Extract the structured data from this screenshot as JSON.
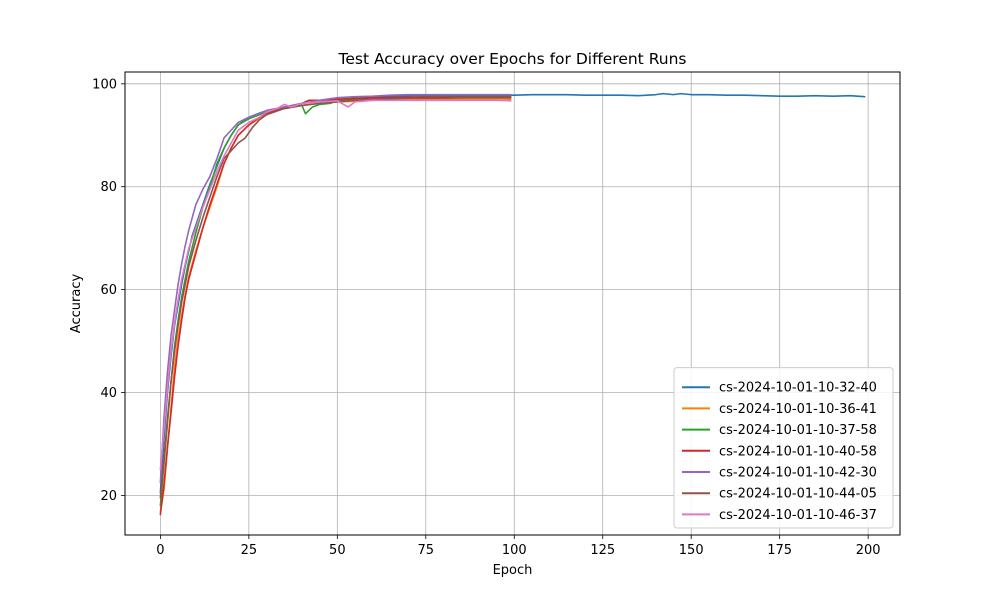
{
  "chart_data": {
    "type": "line",
    "title": "Test Accuracy over Epochs for Different Runs",
    "xlabel": "Epoch",
    "ylabel": "Accuracy",
    "xlim": [
      -10,
      209
    ],
    "ylim": [
      12.3,
      102.3
    ],
    "xticks": [
      0,
      25,
      50,
      75,
      100,
      125,
      150,
      175,
      200
    ],
    "yticks": [
      20,
      40,
      60,
      80,
      100
    ],
    "grid": true,
    "legend_position": "lower right",
    "series": [
      {
        "name": "cs-2024-10-01-10-32-40",
        "color": "#1f77b4",
        "x": [
          0,
          1,
          2,
          3,
          4,
          5,
          6,
          7,
          8,
          9,
          10,
          12,
          14,
          16,
          18,
          20,
          22,
          25,
          28,
          30,
          35,
          40,
          45,
          50,
          55,
          60,
          65,
          70,
          75,
          80,
          85,
          90,
          95,
          100,
          105,
          110,
          115,
          120,
          125,
          130,
          135,
          140,
          142,
          145,
          147,
          150,
          155,
          160,
          165,
          170,
          175,
          180,
          185,
          190,
          195,
          199
        ],
        "y": [
          20.5,
          31,
          40,
          47,
          53,
          57,
          61,
          64.5,
          67.5,
          70.5,
          72.5,
          76.5,
          80.5,
          84,
          87.5,
          90,
          92,
          93.5,
          94.3,
          94.8,
          95.5,
          96.2,
          96.6,
          97,
          97.2,
          97.4,
          97.6,
          97.7,
          97.8,
          97.8,
          97.8,
          97.8,
          97.8,
          97.8,
          97.9,
          97.9,
          97.9,
          97.8,
          97.8,
          97.8,
          97.7,
          97.9,
          98.1,
          97.9,
          98.1,
          97.9,
          97.9,
          97.8,
          97.8,
          97.7,
          97.6,
          97.6,
          97.7,
          97.6,
          97.7,
          97.5
        ]
      },
      {
        "name": "cs-2024-10-01-10-36-41",
        "color": "#ff7f0e",
        "x": [
          0,
          1,
          2,
          3,
          4,
          5,
          6,
          7,
          8,
          10,
          12,
          14,
          16,
          18,
          20,
          22,
          25,
          28,
          30,
          35,
          40,
          45,
          50,
          55,
          60,
          65,
          70,
          75,
          80,
          85,
          90,
          95,
          99
        ],
        "y": [
          16.8,
          21,
          29,
          37,
          45,
          50.5,
          55,
          59,
          62.5,
          67.5,
          72,
          76,
          80,
          84.5,
          87.5,
          90,
          92,
          93.3,
          94.2,
          95.2,
          95.8,
          96.2,
          96.5,
          96.6,
          96.8,
          96.9,
          97,
          97,
          97,
          97,
          97.1,
          97.1,
          97
        ]
      },
      {
        "name": "cs-2024-10-01-10-37-58",
        "color": "#2ca02c",
        "x": [
          0,
          1,
          2,
          3,
          4,
          5,
          6,
          7,
          8,
          10,
          12,
          14,
          16,
          18,
          20,
          22,
          25,
          28,
          30,
          35,
          40,
          41,
          43,
          45,
          48,
          50,
          55,
          60,
          65,
          70,
          75,
          80,
          85,
          90,
          95,
          99
        ],
        "y": [
          18,
          26,
          34,
          42,
          49,
          54,
          58.5,
          62,
          65.5,
          71,
          76,
          80,
          84.5,
          87.5,
          90,
          92,
          93.2,
          94,
          94.6,
          95.2,
          95.8,
          94.2,
          95.5,
          96,
          96.2,
          96.7,
          97,
          97.2,
          97.3,
          97.4,
          97.5,
          97.5,
          97.5,
          97.5,
          97.5,
          97.5
        ]
      },
      {
        "name": "cs-2024-10-01-10-40-58",
        "color": "#d62728",
        "x": [
          0,
          1,
          2,
          3,
          4,
          5,
          6,
          7,
          8,
          10,
          12,
          14,
          16,
          18,
          20,
          22,
          25,
          28,
          30,
          35,
          40,
          42,
          45,
          50,
          55,
          60,
          65,
          70,
          75,
          80,
          85,
          90,
          95,
          99
        ],
        "y": [
          16.3,
          22,
          29.5,
          36,
          43,
          49,
          54,
          58.5,
          62,
          67,
          72,
          76.5,
          80.5,
          84.5,
          87.5,
          90,
          92,
          93.5,
          94.3,
          95.3,
          96.2,
          96.8,
          96.8,
          97,
          97.2,
          97.3,
          97.3,
          97.4,
          97.4,
          97.4,
          97.4,
          97.4,
          97.4,
          97.4
        ]
      },
      {
        "name": "cs-2024-10-01-10-42-30",
        "color": "#9467bd",
        "x": [
          0,
          1,
          2,
          3,
          4,
          5,
          6,
          7,
          8,
          9,
          10,
          12,
          14,
          16,
          18,
          20,
          22,
          25,
          28,
          30,
          35,
          40,
          45,
          50,
          55,
          60,
          65,
          70,
          75,
          80,
          85,
          90,
          95,
          99
        ],
        "y": [
          22.5,
          35,
          44,
          51,
          56,
          61,
          65,
          68.5,
          71.5,
          74,
          76.5,
          79.5,
          82,
          85.5,
          89.5,
          91,
          92.5,
          93.5,
          94.2,
          94.8,
          95.5,
          96.2,
          96.8,
          97.3,
          97.5,
          97.6,
          97.8,
          97.9,
          97.9,
          97.9,
          97.9,
          97.9,
          97.9,
          97.9
        ]
      },
      {
        "name": "cs-2024-10-01-10-44-05",
        "color": "#8c564b",
        "x": [
          0,
          1,
          2,
          3,
          4,
          5,
          6,
          7,
          8,
          10,
          12,
          14,
          16,
          18,
          20,
          22,
          24,
          26,
          28,
          30,
          35,
          40,
          45,
          50,
          55,
          60,
          65,
          70,
          75,
          80,
          85,
          90,
          95,
          99
        ],
        "y": [
          19.5,
          27,
          35,
          42,
          48,
          53,
          57.5,
          61,
          64.5,
          69.5,
          74,
          78,
          82,
          85.5,
          87,
          88.5,
          89.5,
          91.5,
          93,
          94,
          95.2,
          95.8,
          96.2,
          96.5,
          96.8,
          97,
          97.1,
          97.2,
          97.2,
          97.2,
          97.3,
          97.3,
          97.3,
          97.3
        ]
      },
      {
        "name": "cs-2024-10-01-10-46-37",
        "color": "#e377c2",
        "x": [
          0,
          1,
          2,
          3,
          4,
          5,
          6,
          7,
          8,
          10,
          12,
          14,
          16,
          18,
          20,
          22,
          25,
          28,
          30,
          33,
          35,
          37,
          40,
          45,
          50,
          53,
          55,
          60,
          65,
          70,
          75,
          80,
          85,
          90,
          95,
          99
        ],
        "y": [
          25,
          33,
          41,
          48,
          53.5,
          58,
          62,
          65,
          68,
          72,
          76,
          79.5,
          83,
          86,
          88.5,
          91,
          92.5,
          93.5,
          94.5,
          95.2,
          96,
          95.5,
          96.2,
          96.5,
          96.7,
          95.5,
          96.5,
          96.8,
          96.8,
          96.8,
          96.8,
          96.8,
          96.8,
          96.8,
          96.8,
          96.7
        ]
      }
    ]
  }
}
